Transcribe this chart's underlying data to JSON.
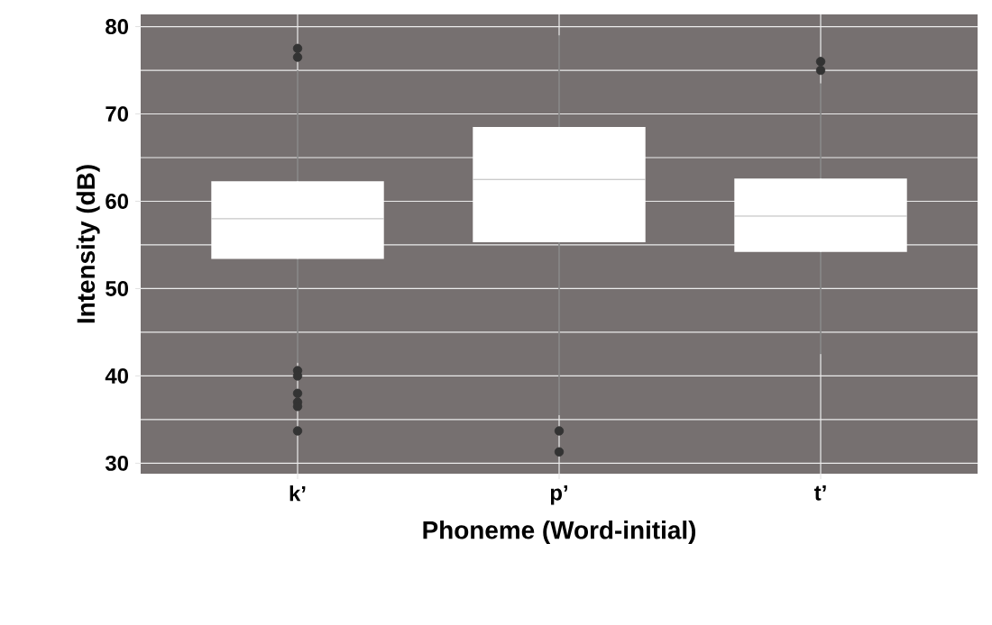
{
  "chart_data": {
    "type": "box",
    "xlabel": "Phoneme (Word-initial)",
    "ylabel": "Intensity (dB)",
    "categories": [
      "k’",
      "p’",
      "t’"
    ],
    "boxes": [
      {
        "low": 41.5,
        "q1": 53.4,
        "median": 58.0,
        "q3": 62.3,
        "high": 75,
        "outliers": [
          77.5,
          76.5,
          40.6,
          40,
          38,
          37,
          36.5,
          33.7
        ]
      },
      {
        "low": 35.5,
        "q1": 55.3,
        "median": 62.5,
        "q3": 68.5,
        "high": 79,
        "outliers": [
          33.7,
          31.3
        ]
      },
      {
        "low": 42.5,
        "q1": 54.2,
        "median": 58.3,
        "q3": 62.6,
        "high": 73.5,
        "outliers": [
          76,
          75
        ]
      }
    ],
    "color": "#ffffff",
    "ylim": [
      28.8,
      81.4
    ],
    "yticks": [
      30,
      40,
      50,
      60,
      70,
      80
    ],
    "grid": true
  }
}
